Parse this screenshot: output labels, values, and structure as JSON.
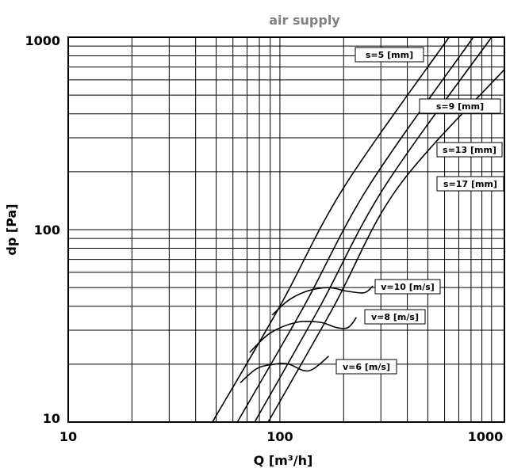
{
  "chart_data": {
    "type": "line",
    "title": "air supply",
    "xlabel": "Q [m³/h]",
    "ylabel": "dp [Pa]",
    "x_scale": "log",
    "y_scale": "log",
    "xlim": [
      10,
      1150
    ],
    "ylim": [
      10,
      1000
    ],
    "x_ticks": [
      "10",
      "100",
      "1000"
    ],
    "y_ticks": [
      "10",
      "100",
      "1000"
    ],
    "grid": true,
    "series": [
      {
        "name": "s=5 [mm]",
        "points": [
          [
            48,
            10
          ],
          [
            100,
            40
          ],
          [
            200,
            165
          ],
          [
            630,
            1000
          ]
        ]
      },
      {
        "name": "s=9 [mm]",
        "points": [
          [
            63,
            10
          ],
          [
            130,
            40
          ],
          [
            260,
            165
          ],
          [
            820,
            1000
          ]
        ]
      },
      {
        "name": "s=13 [mm]",
        "points": [
          [
            76,
            10
          ],
          [
            155,
            40
          ],
          [
            310,
            165
          ],
          [
            1000,
            1000
          ]
        ]
      },
      {
        "name": "s=17 [mm]",
        "points": [
          [
            88,
            10
          ],
          [
            180,
            40
          ],
          [
            360,
            165
          ],
          [
            1150,
            680
          ]
        ]
      },
      {
        "name": "v=10 [m/s]",
        "points": [
          [
            92,
            36
          ],
          [
            110,
            43
          ],
          [
            135,
            48
          ],
          [
            170,
            50
          ],
          [
            205,
            48
          ],
          [
            250,
            47
          ],
          [
            275,
            51
          ]
        ]
      },
      {
        "name": "v=8 [m/s]",
        "points": [
          [
            72,
            23
          ],
          [
            90,
            29
          ],
          [
            120,
            33
          ],
          [
            155,
            33
          ],
          [
            185,
            31
          ],
          [
            210,
            31
          ],
          [
            230,
            35
          ]
        ]
      },
      {
        "name": "v=6 [m/s]",
        "points": [
          [
            65,
            16
          ],
          [
            78,
            19
          ],
          [
            95,
            20
          ],
          [
            110,
            20
          ],
          [
            130,
            18.5
          ],
          [
            145,
            19
          ],
          [
            170,
            22
          ]
        ]
      }
    ],
    "labels": [
      {
        "text": "s=5 [mm]",
        "series": "s=5 [mm]"
      },
      {
        "text": "s=9 [mm]",
        "series": "s=9 [mm]"
      },
      {
        "text": "s=13 [mm]",
        "series": "s=13 [mm]"
      },
      {
        "text": "s=17 [mm]",
        "series": "s=17 [mm]"
      },
      {
        "text": "v=10 [m/s]",
        "series": "v=10 [m/s]"
      },
      {
        "text": "v=8 [m/s]",
        "series": "v=8 [m/s]"
      },
      {
        "text": "v=6 [m/s]",
        "series": "v=6 [m/s]"
      }
    ]
  }
}
